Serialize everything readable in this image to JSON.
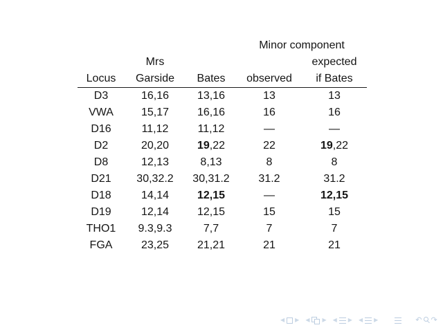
{
  "slide": {
    "background_color": "#ffffff",
    "text_color": "#141414"
  },
  "table": {
    "group_header": "Minor component",
    "columns": [
      {
        "header": "Locus"
      },
      {
        "header_line1": "Mrs",
        "header": "Garside"
      },
      {
        "header": "Bates"
      },
      {
        "header": "observed"
      },
      {
        "header_line1": "expected",
        "header": "if Bates"
      }
    ],
    "rows": [
      {
        "locus": "D3",
        "mrs_garside": "16,16",
        "bates": [
          [
            "13,16",
            false
          ]
        ],
        "observed": "13",
        "expected": [
          [
            "13",
            false
          ]
        ]
      },
      {
        "locus": "VWA",
        "mrs_garside": "15,17",
        "bates": [
          [
            "16,16",
            false
          ]
        ],
        "observed": "16",
        "expected": [
          [
            "16",
            false
          ]
        ]
      },
      {
        "locus": "D16",
        "mrs_garside": "11,12",
        "bates": [
          [
            "11,12",
            false
          ]
        ],
        "observed": "—",
        "expected": [
          [
            "—",
            false
          ]
        ]
      },
      {
        "locus": "D2",
        "mrs_garside": "20,20",
        "bates": [
          [
            "19",
            true
          ],
          [
            ",22",
            false
          ]
        ],
        "observed": "22",
        "expected": [
          [
            "19",
            true
          ],
          [
            ",22",
            false
          ]
        ]
      },
      {
        "locus": "D8",
        "mrs_garside": "12,13",
        "bates": [
          [
            "8,13",
            false
          ]
        ],
        "observed": "8",
        "expected": [
          [
            "8",
            false
          ]
        ]
      },
      {
        "locus": "D21",
        "mrs_garside": "30,32.2",
        "bates": [
          [
            "30,31.2",
            false
          ]
        ],
        "observed": "31.2",
        "expected": [
          [
            "31.2",
            false
          ]
        ]
      },
      {
        "locus": "D18",
        "mrs_garside": "14,14",
        "bates": [
          [
            "12,15",
            true
          ]
        ],
        "observed": "—",
        "expected": [
          [
            "12,15",
            true
          ]
        ]
      },
      {
        "locus": "D19",
        "mrs_garside": "12,14",
        "bates": [
          [
            "12,15",
            false
          ]
        ],
        "observed": "15",
        "expected": [
          [
            "15",
            false
          ]
        ]
      },
      {
        "locus": "THO1",
        "mrs_garside": "9.3,9.3",
        "bates": [
          [
            "7,7",
            false
          ]
        ],
        "observed": "7",
        "expected": [
          [
            "7",
            false
          ]
        ]
      },
      {
        "locus": "FGA",
        "mrs_garside": "23,25",
        "bates": [
          [
            "21,21",
            false
          ]
        ],
        "observed": "21",
        "expected": [
          [
            "21",
            false
          ]
        ]
      }
    ]
  },
  "nav": {
    "color": "#bccde0",
    "symbols": [
      {
        "type": "tri-left",
        "name": "nav-slide-prev-icon"
      },
      {
        "type": "square",
        "name": "nav-slide-icon"
      },
      {
        "type": "tri-right",
        "name": "nav-slide-next-icon"
      },
      {
        "type": "tri-left",
        "name": "nav-frame-prev-icon"
      },
      {
        "type": "frame",
        "name": "nav-frame-icon"
      },
      {
        "type": "tri-right",
        "name": "nav-frame-next-icon"
      },
      {
        "type": "tri-left",
        "name": "nav-subsection-prev-icon"
      },
      {
        "type": "lines",
        "name": "nav-subsection-icon"
      },
      {
        "type": "tri-right",
        "name": "nav-subsection-next-icon"
      },
      {
        "type": "tri-left",
        "name": "nav-section-prev-icon"
      },
      {
        "type": "lines",
        "name": "nav-section-icon"
      },
      {
        "type": "tri-right",
        "name": "nav-section-next-icon"
      },
      {
        "type": "lines",
        "name": "nav-appendix-icon"
      },
      {
        "type": "arrow-back",
        "name": "nav-back-icon"
      },
      {
        "type": "search",
        "name": "nav-search-icon"
      },
      {
        "type": "arrow-forward",
        "name": "nav-forward-icon"
      }
    ]
  }
}
